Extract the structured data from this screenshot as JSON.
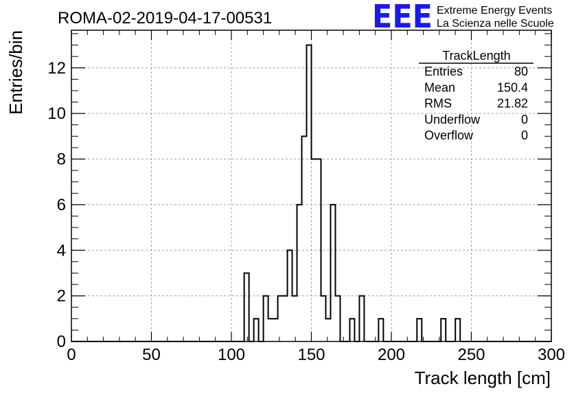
{
  "title": "ROMA-02-2019-04-17-00531",
  "logo": {
    "letters": "EEE",
    "line1": "Extreme Energy Events",
    "line2": "La Scienza nelle Scuole",
    "color": "#1a1aee"
  },
  "stats": {
    "name": "TrackLength",
    "rows": [
      {
        "label": "Entries",
        "value": "80"
      },
      {
        "label": "Mean",
        "value": "150.4"
      },
      {
        "label": "RMS",
        "value": "21.82"
      },
      {
        "label": "Underflow",
        "value": "0"
      },
      {
        "label": "Overflow",
        "value": "0"
      }
    ]
  },
  "chart_data": {
    "type": "bar",
    "style": "step-histogram",
    "xlabel": "Track length [cm]",
    "ylabel": "Entries/bin",
    "xlim": [
      0,
      300
    ],
    "ylim": [
      0,
      13.65
    ],
    "bin_width": 3,
    "grid": true,
    "xticks": [
      "0",
      "50",
      "100",
      "150",
      "200",
      "250",
      "300"
    ],
    "yticks": [
      "0",
      "2",
      "4",
      "6",
      "8",
      "10",
      "12"
    ],
    "bins": [
      {
        "x": 108,
        "count": 3
      },
      {
        "x": 114,
        "count": 1
      },
      {
        "x": 120,
        "count": 2
      },
      {
        "x": 123,
        "count": 1
      },
      {
        "x": 126,
        "count": 1
      },
      {
        "x": 129,
        "count": 2
      },
      {
        "x": 132,
        "count": 2
      },
      {
        "x": 135,
        "count": 4
      },
      {
        "x": 138,
        "count": 2
      },
      {
        "x": 141,
        "count": 6
      },
      {
        "x": 144,
        "count": 9
      },
      {
        "x": 147,
        "count": 13
      },
      {
        "x": 150,
        "count": 8
      },
      {
        "x": 153,
        "count": 8
      },
      {
        "x": 156,
        "count": 2
      },
      {
        "x": 159,
        "count": 1
      },
      {
        "x": 162,
        "count": 6
      },
      {
        "x": 165,
        "count": 2
      },
      {
        "x": 174,
        "count": 1
      },
      {
        "x": 180,
        "count": 2
      },
      {
        "x": 192,
        "count": 1
      },
      {
        "x": 216,
        "count": 1
      },
      {
        "x": 231,
        "count": 1
      },
      {
        "x": 240,
        "count": 1
      }
    ]
  }
}
